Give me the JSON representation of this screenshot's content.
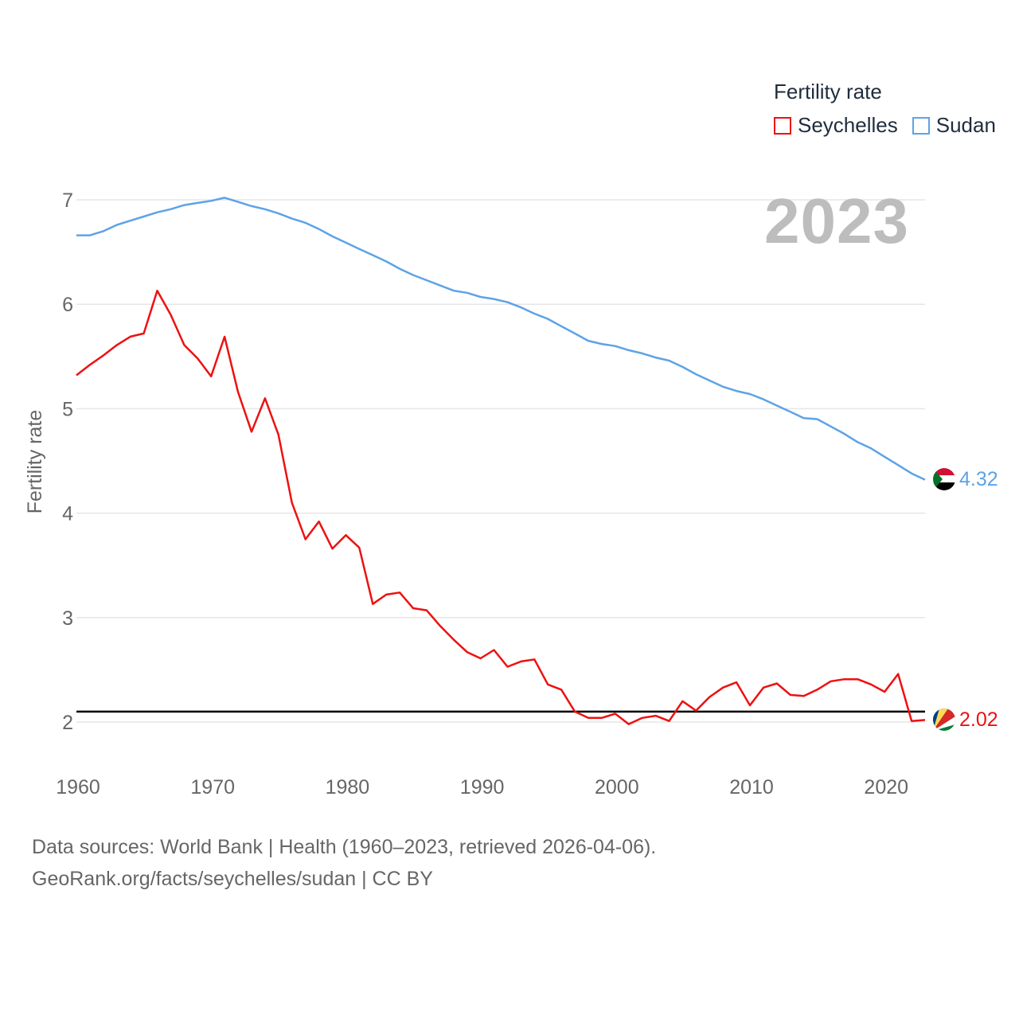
{
  "legend": {
    "title": "Fertility rate",
    "items": [
      {
        "label": "Seychelles",
        "color": "#ee1111"
      },
      {
        "label": "Sudan",
        "color": "#5da3e6"
      }
    ]
  },
  "year_label": "2023",
  "footer": {
    "line1": "Data sources: World Bank | Health (1960–2023, retrieved 2026-04-06).",
    "line2": "GeoRank.org/facts/seychelles/sudan | CC BY"
  },
  "chart_data": {
    "type": "line",
    "title": "Fertility rate",
    "xlabel": "",
    "ylabel": "Fertility rate",
    "xlim": [
      1960,
      2023
    ],
    "ylim": [
      1.75,
      7.1
    ],
    "x_ticks": [
      1960,
      1970,
      1980,
      1990,
      2000,
      2010,
      2020
    ],
    "y_ticks": [
      2,
      3,
      4,
      5,
      6,
      7
    ],
    "grid": true,
    "legend_position": "top-right",
    "reference_line": {
      "y": 2.1,
      "color": "#000000"
    },
    "x": [
      1960,
      1961,
      1962,
      1963,
      1964,
      1965,
      1966,
      1967,
      1968,
      1969,
      1970,
      1971,
      1972,
      1973,
      1974,
      1975,
      1976,
      1977,
      1978,
      1979,
      1980,
      1981,
      1982,
      1983,
      1984,
      1985,
      1986,
      1987,
      1988,
      1989,
      1990,
      1991,
      1992,
      1993,
      1994,
      1995,
      1996,
      1997,
      1998,
      1999,
      2000,
      2001,
      2002,
      2003,
      2004,
      2005,
      2006,
      2007,
      2008,
      2009,
      2010,
      2011,
      2012,
      2013,
      2014,
      2015,
      2016,
      2017,
      2018,
      2019,
      2020,
      2021,
      2022,
      2023
    ],
    "series": [
      {
        "name": "Seychelles",
        "color": "#ee1111",
        "end_label": "2.02",
        "values": [
          5.32,
          5.42,
          5.51,
          5.61,
          5.69,
          5.72,
          6.13,
          5.9,
          5.61,
          5.48,
          5.31,
          5.69,
          5.16,
          4.78,
          5.1,
          4.75,
          4.1,
          3.75,
          3.92,
          3.66,
          3.79,
          3.67,
          3.13,
          3.22,
          3.24,
          3.09,
          3.07,
          2.92,
          2.79,
          2.67,
          2.61,
          2.69,
          2.53,
          2.58,
          2.6,
          2.36,
          2.31,
          2.1,
          2.04,
          2.04,
          2.08,
          1.98,
          2.04,
          2.06,
          2.01,
          2.2,
          2.11,
          2.24,
          2.33,
          2.38,
          2.16,
          2.33,
          2.37,
          2.26,
          2.25,
          2.31,
          2.39,
          2.41,
          2.41,
          2.36,
          2.29,
          2.46,
          2.01,
          2.02
        ]
      },
      {
        "name": "Sudan",
        "color": "#5da3e6",
        "end_label": "4.32",
        "values": [
          6.66,
          6.66,
          6.7,
          6.76,
          6.8,
          6.84,
          6.88,
          6.91,
          6.95,
          6.97,
          6.99,
          7.02,
          6.98,
          6.94,
          6.91,
          6.87,
          6.82,
          6.78,
          6.72,
          6.65,
          6.59,
          6.53,
          6.47,
          6.41,
          6.34,
          6.28,
          6.23,
          6.18,
          6.13,
          6.11,
          6.07,
          6.05,
          6.02,
          5.97,
          5.91,
          5.86,
          5.79,
          5.72,
          5.65,
          5.62,
          5.6,
          5.56,
          5.53,
          5.49,
          5.46,
          5.4,
          5.33,
          5.27,
          5.21,
          5.17,
          5.14,
          5.09,
          5.03,
          4.97,
          4.91,
          4.9,
          4.83,
          4.76,
          4.68,
          4.62,
          4.54,
          4.46,
          4.38,
          4.32
        ]
      }
    ]
  }
}
